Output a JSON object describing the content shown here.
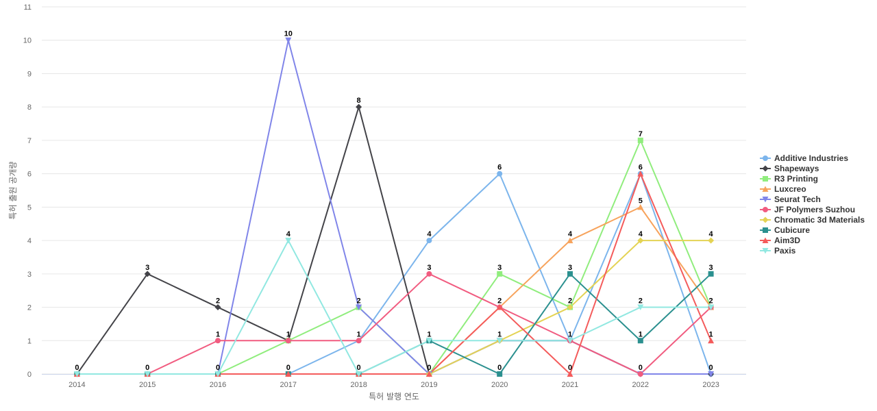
{
  "chart_data": {
    "type": "line",
    "title": "",
    "xlabel": "특허 발행 연도",
    "ylabel": "특허 출원 공개량",
    "x": [
      "2014",
      "2015",
      "2016",
      "2017",
      "2018",
      "2019",
      "2020",
      "2021",
      "2022",
      "2023"
    ],
    "y_ticks": [
      "0",
      "1",
      "2",
      "3",
      "4",
      "5",
      "6",
      "7",
      "8",
      "9",
      "10",
      "11"
    ],
    "ylim": [
      0,
      11
    ],
    "grid": true,
    "legend_position": "right",
    "series": [
      {
        "name": "Additive Industries",
        "color": "#7cb5ec",
        "marker": "circle",
        "values": [
          0,
          0,
          0,
          0,
          1,
          4,
          6,
          1,
          6,
          0
        ]
      },
      {
        "name": "Shapeways",
        "color": "#434348",
        "marker": "diamond",
        "values": [
          0,
          3,
          2,
          1,
          8,
          0,
          1,
          1,
          0,
          0
        ]
      },
      {
        "name": "R3 Printing",
        "color": "#90ed7d",
        "marker": "square",
        "values": [
          0,
          0,
          0,
          1,
          2,
          0,
          3,
          2,
          7,
          2
        ]
      },
      {
        "name": "Luxcreo",
        "color": "#f7a35c",
        "marker": "triangle",
        "values": [
          0,
          0,
          0,
          0,
          0,
          0,
          2,
          4,
          5,
          2
        ]
      },
      {
        "name": "Seurat Tech",
        "color": "#8085e9",
        "marker": "triangle-down",
        "values": [
          0,
          0,
          0,
          10,
          2,
          0,
          1,
          1,
          0,
          0
        ]
      },
      {
        "name": "JF Polymers Suzhou",
        "color": "#f15c80",
        "marker": "circle",
        "values": [
          0,
          0,
          1,
          1,
          1,
          3,
          2,
          1,
          0,
          2
        ]
      },
      {
        "name": "Chromatic 3d Materials",
        "color": "#e4d354",
        "marker": "diamond",
        "values": [
          0,
          0,
          0,
          0,
          0,
          0,
          1,
          2,
          4,
          4
        ]
      },
      {
        "name": "Cubicure",
        "color": "#2b908f",
        "marker": "square",
        "values": [
          0,
          0,
          0,
          0,
          0,
          1,
          0,
          3,
          1,
          3
        ]
      },
      {
        "name": "Aim3D",
        "color": "#f45b5b",
        "marker": "triangle",
        "values": [
          0,
          0,
          0,
          0,
          0,
          0,
          2,
          0,
          6,
          1
        ]
      },
      {
        "name": "Paxis",
        "color": "#91e8e1",
        "marker": "triangle-down",
        "values": [
          0,
          0,
          0,
          4,
          0,
          1,
          1,
          1,
          2,
          2
        ]
      }
    ],
    "data_labels": [
      {
        "x": "2014",
        "value": 0,
        "text": "0"
      },
      {
        "x": "2015",
        "value": 3,
        "text": "3"
      },
      {
        "x": "2015",
        "value": 0,
        "text": "0"
      },
      {
        "x": "2016",
        "value": 2,
        "text": "2"
      },
      {
        "x": "2016",
        "value": 1,
        "text": "1"
      },
      {
        "x": "2016",
        "value": 0,
        "text": "0"
      },
      {
        "x": "2017",
        "value": 10,
        "text": "10"
      },
      {
        "x": "2017",
        "value": 4,
        "text": "4"
      },
      {
        "x": "2017",
        "value": 1,
        "text": "1"
      },
      {
        "x": "2017",
        "value": 0,
        "text": "0"
      },
      {
        "x": "2018",
        "value": 8,
        "text": "8"
      },
      {
        "x": "2018",
        "value": 2,
        "text": "2"
      },
      {
        "x": "2018",
        "value": 1,
        "text": "1"
      },
      {
        "x": "2018",
        "value": 0,
        "text": "0"
      },
      {
        "x": "2019",
        "value": 4,
        "text": "4"
      },
      {
        "x": "2019",
        "value": 3,
        "text": "3"
      },
      {
        "x": "2019",
        "value": 1,
        "text": "1"
      },
      {
        "x": "2019",
        "value": 0,
        "text": "0"
      },
      {
        "x": "2020",
        "value": 6,
        "text": "6"
      },
      {
        "x": "2020",
        "value": 3,
        "text": "3"
      },
      {
        "x": "2020",
        "value": 2,
        "text": "2"
      },
      {
        "x": "2020",
        "value": 1,
        "text": "1"
      },
      {
        "x": "2020",
        "value": 0,
        "text": "0"
      },
      {
        "x": "2021",
        "value": 4,
        "text": "4"
      },
      {
        "x": "2021",
        "value": 3,
        "text": "3"
      },
      {
        "x": "2021",
        "value": 2,
        "text": "2"
      },
      {
        "x": "2021",
        "value": 1,
        "text": "1"
      },
      {
        "x": "2021",
        "value": 0,
        "text": "0"
      },
      {
        "x": "2022",
        "value": 7,
        "text": "7"
      },
      {
        "x": "2022",
        "value": 6,
        "text": "6"
      },
      {
        "x": "2022",
        "value": 5,
        "text": "5"
      },
      {
        "x": "2022",
        "value": 4,
        "text": "4"
      },
      {
        "x": "2022",
        "value": 2,
        "text": "2"
      },
      {
        "x": "2022",
        "value": 1,
        "text": "1"
      },
      {
        "x": "2022",
        "value": 0,
        "text": "0"
      },
      {
        "x": "2023",
        "value": 4,
        "text": "4"
      },
      {
        "x": "2023",
        "value": 3,
        "text": "3"
      },
      {
        "x": "2023",
        "value": 2,
        "text": "2"
      },
      {
        "x": "2023",
        "value": 1,
        "text": "1"
      },
      {
        "x": "2023",
        "value": 0,
        "text": "0"
      }
    ]
  }
}
